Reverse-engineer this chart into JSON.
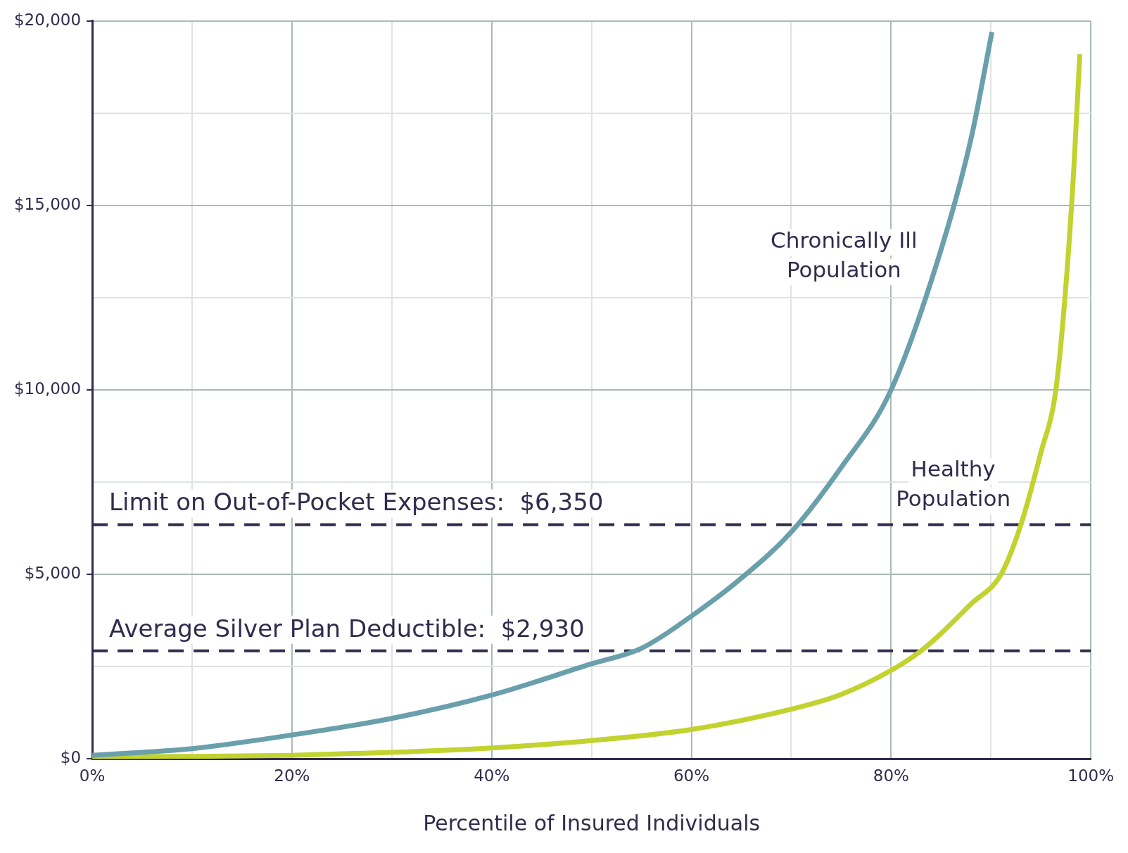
{
  "chart_data": {
    "type": "line",
    "xlabel": "Percentile of Insured Individuals",
    "xlim": [
      0,
      100
    ],
    "ylim": [
      0,
      20000
    ],
    "xticks": [
      {
        "value": 0,
        "label": "0%"
      },
      {
        "value": 10,
        "label": null
      },
      {
        "value": 20,
        "label": "20%"
      },
      {
        "value": 30,
        "label": null
      },
      {
        "value": 40,
        "label": "40%"
      },
      {
        "value": 50,
        "label": null
      },
      {
        "value": 60,
        "label": "60%"
      },
      {
        "value": 70,
        "label": null
      },
      {
        "value": 80,
        "label": "80%"
      },
      {
        "value": 90,
        "label": null
      },
      {
        "value": 100,
        "label": "100%"
      }
    ],
    "yticks": [
      {
        "value": 0,
        "label": "$0"
      },
      {
        "value": 2500,
        "label": null
      },
      {
        "value": 5000,
        "label": "$5,000"
      },
      {
        "value": 7500,
        "label": null
      },
      {
        "value": 10000,
        "label": "$10,000"
      },
      {
        "value": 12500,
        "label": null
      },
      {
        "value": 15000,
        "label": "$15,000"
      },
      {
        "value": 17500,
        "label": null
      },
      {
        "value": 20000,
        "label": "$20,000"
      }
    ],
    "grid": true,
    "legend": false,
    "marker": "none",
    "line_style": "solid",
    "series": [
      {
        "name": "Chronically Ill Population",
        "color": "#6a9fac",
        "x": [
          0,
          5,
          10,
          20,
          30,
          40,
          50,
          55,
          60,
          65,
          70,
          75,
          80,
          85,
          88,
          90.1
        ],
        "values": [
          100,
          180,
          280,
          650,
          1100,
          1730,
          2580,
          3000,
          3870,
          4900,
          6150,
          7900,
          10000,
          13800,
          16800,
          19700
        ]
      },
      {
        "name": "Healthy Population",
        "color": "#c2d22f",
        "x": [
          0,
          10,
          20,
          30,
          40,
          50,
          60,
          70,
          75,
          80,
          83,
          85,
          88,
          91,
          93,
          95,
          96.5,
          97.5,
          98.3,
          98.9
        ],
        "values": [
          50,
          70,
          100,
          180,
          300,
          500,
          800,
          1350,
          1750,
          2400,
          2930,
          3400,
          4200,
          5000,
          6350,
          8300,
          10000,
          12800,
          16000,
          19100
        ]
      }
    ],
    "ref_lines": [
      {
        "axis": "y",
        "value": 6350,
        "label": "Limit on Out-of-Pocket Expenses:  $6,350",
        "color": "#302c4d",
        "line_style": "dashed"
      },
      {
        "axis": "y",
        "value": 2930,
        "label": "Average Silver Plan Deductible:  $2,930",
        "color": "#302c4d",
        "line_style": "dashed"
      }
    ]
  }
}
